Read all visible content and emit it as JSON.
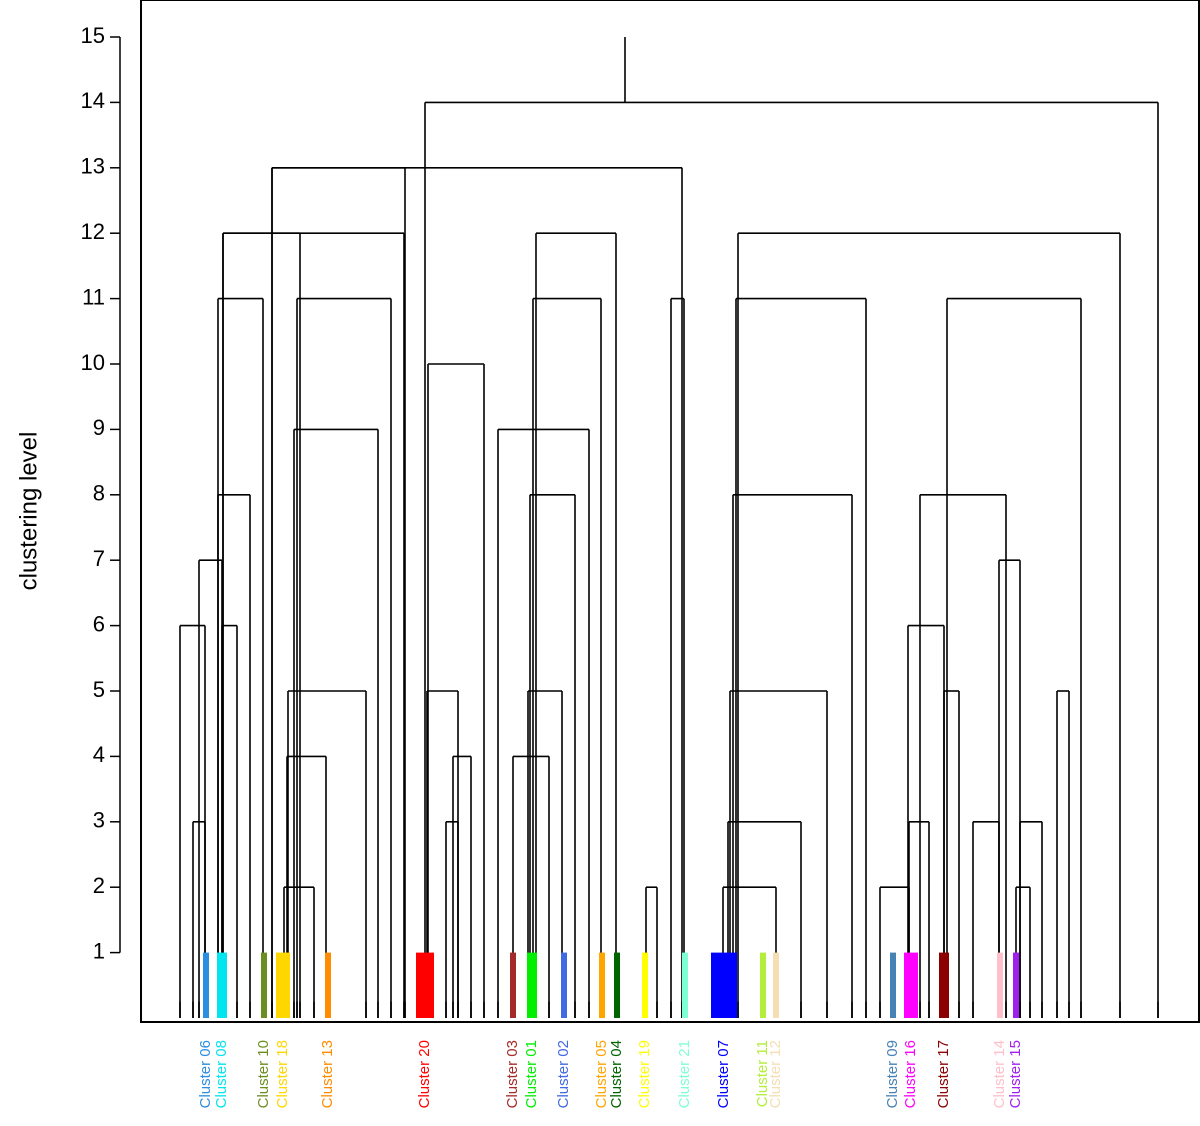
{
  "chart_data": {
    "type": "dendrogram",
    "title": "",
    "xlabel": "",
    "ylabel": "clustering level",
    "ylim": [
      0,
      15.3
    ],
    "yticks": [
      1,
      2,
      3,
      4,
      5,
      6,
      7,
      8,
      9,
      10,
      11,
      12,
      13,
      14,
      15
    ],
    "links": [
      [
        180,
        205,
        6
      ],
      [
        193,
        205,
        3
      ],
      [
        199,
        222,
        7
      ],
      [
        222,
        237,
        6
      ],
      [
        218,
        250,
        8
      ],
      [
        218,
        263,
        11
      ],
      [
        223,
        300,
        12
      ],
      [
        284,
        314,
        2
      ],
      [
        287,
        326,
        4
      ],
      [
        288,
        366,
        5
      ],
      [
        294,
        378,
        9
      ],
      [
        297,
        391,
        11
      ],
      [
        223,
        404,
        12
      ],
      [
        272,
        405,
        13
      ],
      [
        427,
        458,
        5
      ],
      [
        446,
        458,
        3
      ],
      [
        453,
        471,
        4
      ],
      [
        428,
        484,
        10
      ],
      [
        513,
        549,
        4
      ],
      [
        528,
        562,
        5
      ],
      [
        498,
        589,
        9
      ],
      [
        530,
        575,
        8
      ],
      [
        533,
        601,
        11
      ],
      [
        536,
        616,
        12
      ],
      [
        646,
        657,
        2
      ],
      [
        671,
        684,
        11
      ],
      [
        272,
        682,
        13
      ],
      [
        425,
        1158,
        14
      ],
      [
        723,
        776,
        2
      ],
      [
        728,
        801,
        3
      ],
      [
        730,
        827,
        5
      ],
      [
        733,
        852,
        8
      ],
      [
        736,
        866,
        11
      ],
      [
        738,
        1120,
        12
      ],
      [
        880,
        909,
        2
      ],
      [
        909,
        929,
        3
      ],
      [
        908,
        944,
        6
      ],
      [
        944,
        959,
        5
      ],
      [
        920,
        1006,
        8
      ],
      [
        973,
        999,
        3
      ],
      [
        999,
        1020,
        7
      ],
      [
        1016,
        1030,
        2
      ],
      [
        1020,
        1042,
        3
      ],
      [
        947,
        1081,
        11
      ],
      [
        1057,
        1069,
        5
      ]
    ],
    "clusters": [
      {
        "name": "Cluster 06",
        "color": "#2b8ee0",
        "weight": 1
      },
      {
        "name": "Cluster 08",
        "color": "#00e5ee",
        "weight": 2
      },
      {
        "name": "Cluster 10",
        "color": "#6b8e23",
        "weight": 1
      },
      {
        "name": "Cluster 18",
        "color": "#ffd700",
        "weight": 3
      },
      {
        "name": "Cluster 13",
        "color": "#ff8c00",
        "weight": 1
      },
      {
        "name": "Cluster 20",
        "color": "#ff0000",
        "weight": 4
      },
      {
        "name": "Cluster 03",
        "color": "#a52a2a",
        "weight": 1
      },
      {
        "name": "Cluster 01",
        "color": "#00ee00",
        "weight": 2
      },
      {
        "name": "Cluster 02",
        "color": "#4169e1",
        "weight": 1
      },
      {
        "name": "Cluster 05",
        "color": "#ffa500",
        "weight": 1
      },
      {
        "name": "Cluster 04",
        "color": "#006400",
        "weight": 1
      },
      {
        "name": "Cluster 19",
        "color": "#ffff00",
        "weight": 1
      },
      {
        "name": "Cluster 21",
        "color": "#7fffd4",
        "weight": 1
      },
      {
        "name": "Cluster 07",
        "color": "#0000ff",
        "weight": 6
      },
      {
        "name": "Cluster 11",
        "color": "#b3ee3a",
        "weight": 1
      },
      {
        "name": "Cluster 12",
        "color": "#f5deb3",
        "weight": 1
      },
      {
        "name": "Cluster 09",
        "color": "#4682b4",
        "weight": 1
      },
      {
        "name": "Cluster 16",
        "color": "#ff00ff",
        "weight": 3
      },
      {
        "name": "Cluster 17",
        "color": "#8b0000",
        "weight": 2
      },
      {
        "name": "Cluster 14",
        "color": "#ffc0cb",
        "weight": 1
      },
      {
        "name": "Cluster 15",
        "color": "#a020f0",
        "weight": 1
      }
    ]
  }
}
